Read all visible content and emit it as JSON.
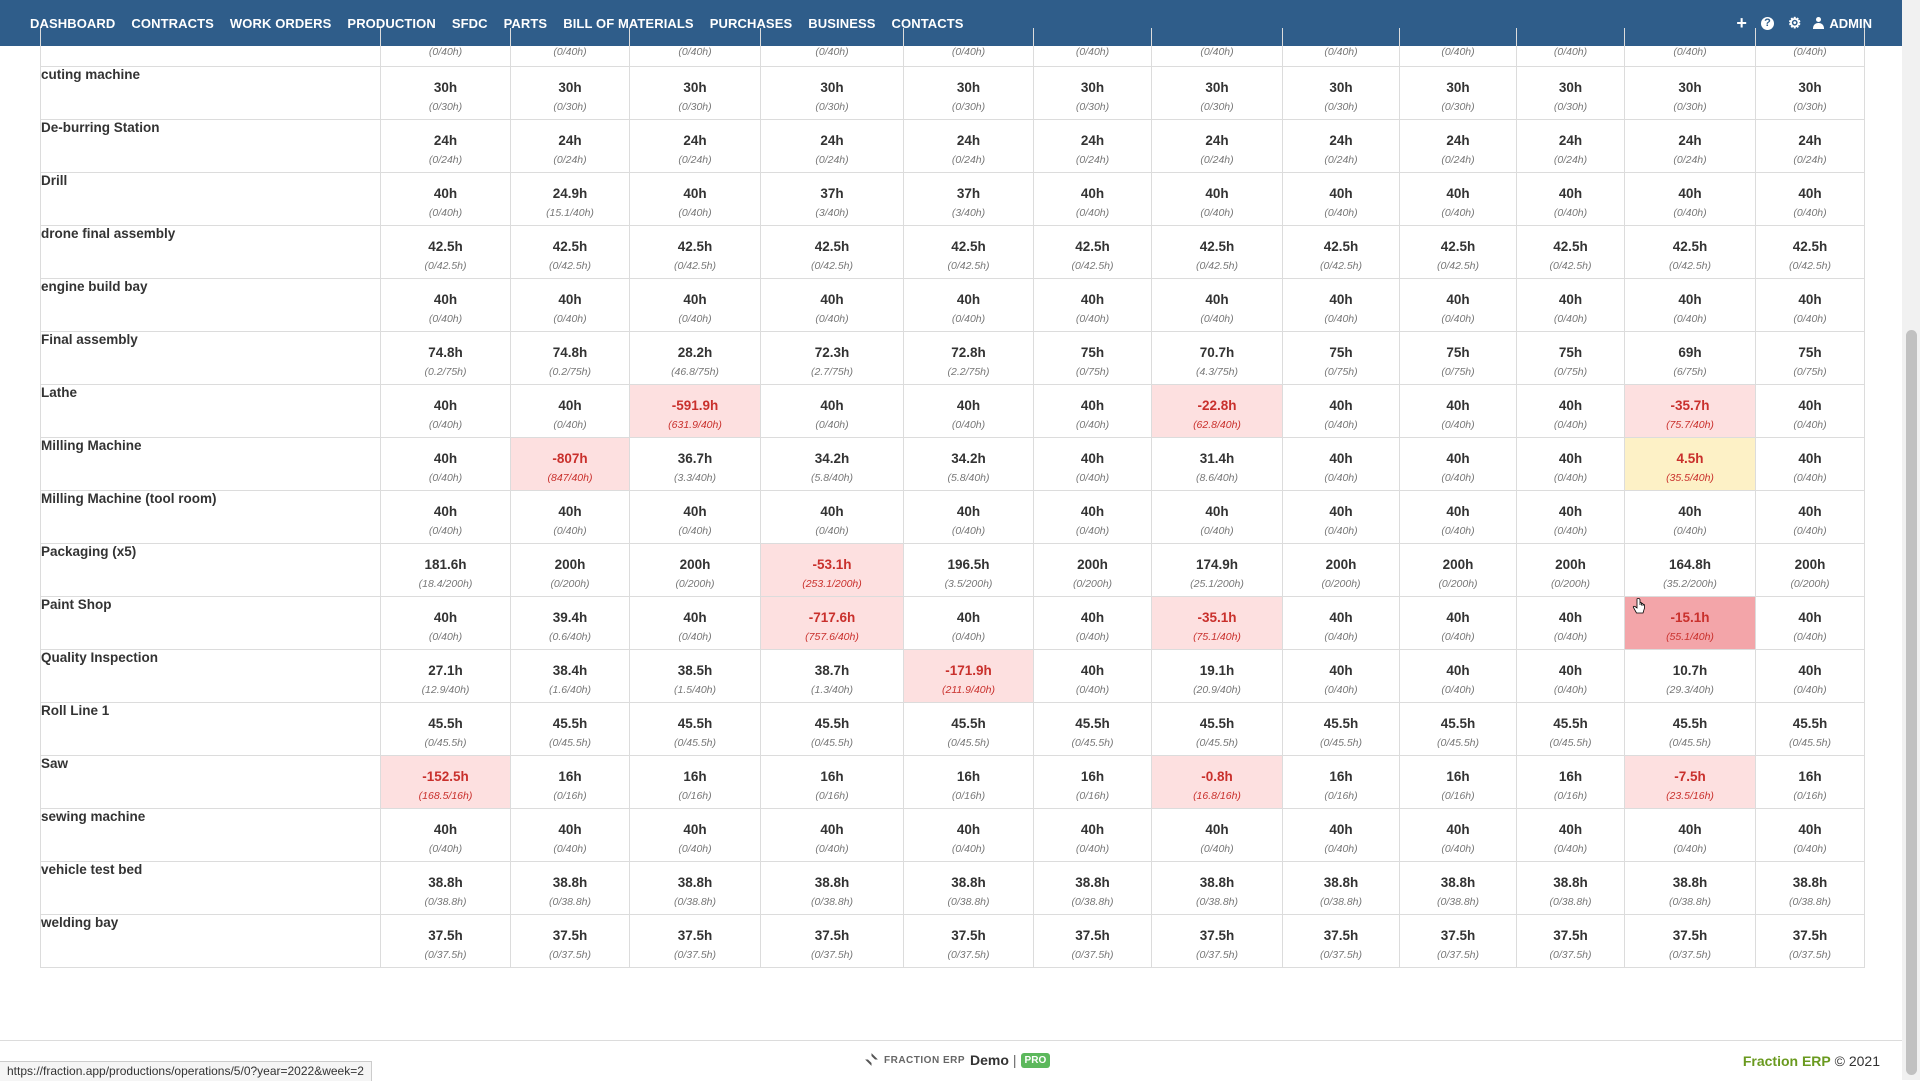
{
  "nav": {
    "items": [
      "DASHBOARD",
      "CONTRACTS",
      "WORK ORDERS",
      "PRODUCTION",
      "SFDC",
      "PARTS",
      "BILL OF MATERIALS",
      "PURCHASES",
      "BUSINESS",
      "CONTACTS"
    ],
    "admin_label": "ADMIN",
    "icons": [
      "plus-icon",
      "help-icon",
      "gear-icon",
      "user-icon"
    ]
  },
  "colors": {
    "navbar": "#2f5d8a",
    "negative_cell": "#fde0e0",
    "warning_cell": "#fdf1c6",
    "hover_cell": "#f3a5a9",
    "negative_text": "#c9302c",
    "brand_green": "#6a9a1f"
  },
  "partial_row": {
    "cells": [
      "(0/40h)",
      "(0/40h)",
      "(0/40h)",
      "(0/40h)",
      "(0/40h)",
      "(0/40h)",
      "(0/40h)",
      "(0/40h)",
      "(0/40h)",
      "(0/40h)",
      "(0/40h)",
      "(0/40h)"
    ]
  },
  "rows": [
    {
      "name": "cuting machine",
      "cells": [
        {
          "h": "30h",
          "s": "(0/30h)"
        },
        {
          "h": "30h",
          "s": "(0/30h)"
        },
        {
          "h": "30h",
          "s": "(0/30h)"
        },
        {
          "h": "30h",
          "s": "(0/30h)"
        },
        {
          "h": "30h",
          "s": "(0/30h)"
        },
        {
          "h": "30h",
          "s": "(0/30h)"
        },
        {
          "h": "30h",
          "s": "(0/30h)"
        },
        {
          "h": "30h",
          "s": "(0/30h)"
        },
        {
          "h": "30h",
          "s": "(0/30h)"
        },
        {
          "h": "30h",
          "s": "(0/30h)"
        },
        {
          "h": "30h",
          "s": "(0/30h)"
        },
        {
          "h": "30h",
          "s": "(0/30h)"
        }
      ]
    },
    {
      "name": "De-burring Station",
      "cells": [
        {
          "h": "24h",
          "s": "(0/24h)"
        },
        {
          "h": "24h",
          "s": "(0/24h)"
        },
        {
          "h": "24h",
          "s": "(0/24h)"
        },
        {
          "h": "24h",
          "s": "(0/24h)"
        },
        {
          "h": "24h",
          "s": "(0/24h)"
        },
        {
          "h": "24h",
          "s": "(0/24h)"
        },
        {
          "h": "24h",
          "s": "(0/24h)"
        },
        {
          "h": "24h",
          "s": "(0/24h)"
        },
        {
          "h": "24h",
          "s": "(0/24h)"
        },
        {
          "h": "24h",
          "s": "(0/24h)"
        },
        {
          "h": "24h",
          "s": "(0/24h)"
        },
        {
          "h": "24h",
          "s": "(0/24h)"
        }
      ]
    },
    {
      "name": "Drill",
      "cells": [
        {
          "h": "40h",
          "s": "(0/40h)"
        },
        {
          "h": "24.9h",
          "s": "(15.1/40h)"
        },
        {
          "h": "40h",
          "s": "(0/40h)"
        },
        {
          "h": "37h",
          "s": "(3/40h)"
        },
        {
          "h": "37h",
          "s": "(3/40h)"
        },
        {
          "h": "40h",
          "s": "(0/40h)"
        },
        {
          "h": "40h",
          "s": "(0/40h)"
        },
        {
          "h": "40h",
          "s": "(0/40h)"
        },
        {
          "h": "40h",
          "s": "(0/40h)"
        },
        {
          "h": "40h",
          "s": "(0/40h)"
        },
        {
          "h": "40h",
          "s": "(0/40h)"
        },
        {
          "h": "40h",
          "s": "(0/40h)"
        }
      ]
    },
    {
      "name": "drone final assembly",
      "cells": [
        {
          "h": "42.5h",
          "s": "(0/42.5h)"
        },
        {
          "h": "42.5h",
          "s": "(0/42.5h)"
        },
        {
          "h": "42.5h",
          "s": "(0/42.5h)"
        },
        {
          "h": "42.5h",
          "s": "(0/42.5h)"
        },
        {
          "h": "42.5h",
          "s": "(0/42.5h)"
        },
        {
          "h": "42.5h",
          "s": "(0/42.5h)"
        },
        {
          "h": "42.5h",
          "s": "(0/42.5h)"
        },
        {
          "h": "42.5h",
          "s": "(0/42.5h)"
        },
        {
          "h": "42.5h",
          "s": "(0/42.5h)"
        },
        {
          "h": "42.5h",
          "s": "(0/42.5h)"
        },
        {
          "h": "42.5h",
          "s": "(0/42.5h)"
        },
        {
          "h": "42.5h",
          "s": "(0/42.5h)"
        }
      ]
    },
    {
      "name": "engine build bay",
      "cells": [
        {
          "h": "40h",
          "s": "(0/40h)"
        },
        {
          "h": "40h",
          "s": "(0/40h)"
        },
        {
          "h": "40h",
          "s": "(0/40h)"
        },
        {
          "h": "40h",
          "s": "(0/40h)"
        },
        {
          "h": "40h",
          "s": "(0/40h)"
        },
        {
          "h": "40h",
          "s": "(0/40h)"
        },
        {
          "h": "40h",
          "s": "(0/40h)"
        },
        {
          "h": "40h",
          "s": "(0/40h)"
        },
        {
          "h": "40h",
          "s": "(0/40h)"
        },
        {
          "h": "40h",
          "s": "(0/40h)"
        },
        {
          "h": "40h",
          "s": "(0/40h)"
        },
        {
          "h": "40h",
          "s": "(0/40h)"
        }
      ]
    },
    {
      "name": "Final assembly",
      "cells": [
        {
          "h": "74.8h",
          "s": "(0.2/75h)"
        },
        {
          "h": "74.8h",
          "s": "(0.2/75h)"
        },
        {
          "h": "28.2h",
          "s": "(46.8/75h)"
        },
        {
          "h": "72.3h",
          "s": "(2.7/75h)"
        },
        {
          "h": "72.8h",
          "s": "(2.2/75h)"
        },
        {
          "h": "75h",
          "s": "(0/75h)"
        },
        {
          "h": "70.7h",
          "s": "(4.3/75h)"
        },
        {
          "h": "75h",
          "s": "(0/75h)"
        },
        {
          "h": "75h",
          "s": "(0/75h)"
        },
        {
          "h": "75h",
          "s": "(0/75h)"
        },
        {
          "h": "69h",
          "s": "(6/75h)"
        },
        {
          "h": "75h",
          "s": "(0/75h)"
        }
      ]
    },
    {
      "name": "Lathe",
      "cells": [
        {
          "h": "40h",
          "s": "(0/40h)"
        },
        {
          "h": "40h",
          "s": "(0/40h)"
        },
        {
          "h": "-591.9h",
          "s": "(631.9/40h)",
          "state": "neg"
        },
        {
          "h": "40h",
          "s": "(0/40h)"
        },
        {
          "h": "40h",
          "s": "(0/40h)"
        },
        {
          "h": "40h",
          "s": "(0/40h)"
        },
        {
          "h": "-22.8h",
          "s": "(62.8/40h)",
          "state": "neg"
        },
        {
          "h": "40h",
          "s": "(0/40h)"
        },
        {
          "h": "40h",
          "s": "(0/40h)"
        },
        {
          "h": "40h",
          "s": "(0/40h)"
        },
        {
          "h": "-35.7h",
          "s": "(75.7/40h)",
          "state": "neg"
        },
        {
          "h": "40h",
          "s": "(0/40h)"
        }
      ]
    },
    {
      "name": "Milling Machine",
      "cells": [
        {
          "h": "40h",
          "s": "(0/40h)"
        },
        {
          "h": "-807h",
          "s": "(847/40h)",
          "state": "neg"
        },
        {
          "h": "36.7h",
          "s": "(3.3/40h)"
        },
        {
          "h": "34.2h",
          "s": "(5.8/40h)"
        },
        {
          "h": "34.2h",
          "s": "(5.8/40h)"
        },
        {
          "h": "40h",
          "s": "(0/40h)"
        },
        {
          "h": "31.4h",
          "s": "(8.6/40h)"
        },
        {
          "h": "40h",
          "s": "(0/40h)"
        },
        {
          "h": "40h",
          "s": "(0/40h)"
        },
        {
          "h": "40h",
          "s": "(0/40h)"
        },
        {
          "h": "4.5h",
          "s": "(35.5/40h)",
          "state": "warn"
        },
        {
          "h": "40h",
          "s": "(0/40h)"
        }
      ]
    },
    {
      "name": "Milling Machine (tool room)",
      "cells": [
        {
          "h": "40h",
          "s": "(0/40h)"
        },
        {
          "h": "40h",
          "s": "(0/40h)"
        },
        {
          "h": "40h",
          "s": "(0/40h)"
        },
        {
          "h": "40h",
          "s": "(0/40h)"
        },
        {
          "h": "40h",
          "s": "(0/40h)"
        },
        {
          "h": "40h",
          "s": "(0/40h)"
        },
        {
          "h": "40h",
          "s": "(0/40h)"
        },
        {
          "h": "40h",
          "s": "(0/40h)"
        },
        {
          "h": "40h",
          "s": "(0/40h)"
        },
        {
          "h": "40h",
          "s": "(0/40h)"
        },
        {
          "h": "40h",
          "s": "(0/40h)"
        },
        {
          "h": "40h",
          "s": "(0/40h)"
        }
      ]
    },
    {
      "name": "Packaging (x5)",
      "cells": [
        {
          "h": "181.6h",
          "s": "(18.4/200h)"
        },
        {
          "h": "200h",
          "s": "(0/200h)"
        },
        {
          "h": "200h",
          "s": "(0/200h)"
        },
        {
          "h": "-53.1h",
          "s": "(253.1/200h)",
          "state": "neg"
        },
        {
          "h": "196.5h",
          "s": "(3.5/200h)"
        },
        {
          "h": "200h",
          "s": "(0/200h)"
        },
        {
          "h": "174.9h",
          "s": "(25.1/200h)"
        },
        {
          "h": "200h",
          "s": "(0/200h)"
        },
        {
          "h": "200h",
          "s": "(0/200h)"
        },
        {
          "h": "200h",
          "s": "(0/200h)"
        },
        {
          "h": "164.8h",
          "s": "(35.2/200h)"
        },
        {
          "h": "200h",
          "s": "(0/200h)"
        }
      ]
    },
    {
      "name": "Paint Shop",
      "cells": [
        {
          "h": "40h",
          "s": "(0/40h)"
        },
        {
          "h": "39.4h",
          "s": "(0.6/40h)"
        },
        {
          "h": "40h",
          "s": "(0/40h)"
        },
        {
          "h": "-717.6h",
          "s": "(757.6/40h)",
          "state": "neg"
        },
        {
          "h": "40h",
          "s": "(0/40h)"
        },
        {
          "h": "40h",
          "s": "(0/40h)"
        },
        {
          "h": "-35.1h",
          "s": "(75.1/40h)",
          "state": "neg"
        },
        {
          "h": "40h",
          "s": "(0/40h)"
        },
        {
          "h": "40h",
          "s": "(0/40h)"
        },
        {
          "h": "40h",
          "s": "(0/40h)"
        },
        {
          "h": "-15.1h",
          "s": "(55.1/40h)",
          "state": "hl"
        },
        {
          "h": "40h",
          "s": "(0/40h)"
        }
      ]
    },
    {
      "name": "Quality Inspection",
      "cells": [
        {
          "h": "27.1h",
          "s": "(12.9/40h)"
        },
        {
          "h": "38.4h",
          "s": "(1.6/40h)"
        },
        {
          "h": "38.5h",
          "s": "(1.5/40h)"
        },
        {
          "h": "38.7h",
          "s": "(1.3/40h)"
        },
        {
          "h": "-171.9h",
          "s": "(211.9/40h)",
          "state": "neg"
        },
        {
          "h": "40h",
          "s": "(0/40h)"
        },
        {
          "h": "19.1h",
          "s": "(20.9/40h)"
        },
        {
          "h": "40h",
          "s": "(0/40h)"
        },
        {
          "h": "40h",
          "s": "(0/40h)"
        },
        {
          "h": "40h",
          "s": "(0/40h)"
        },
        {
          "h": "10.7h",
          "s": "(29.3/40h)"
        },
        {
          "h": "40h",
          "s": "(0/40h)"
        }
      ]
    },
    {
      "name": "Roll Line 1",
      "cells": [
        {
          "h": "45.5h",
          "s": "(0/45.5h)"
        },
        {
          "h": "45.5h",
          "s": "(0/45.5h)"
        },
        {
          "h": "45.5h",
          "s": "(0/45.5h)"
        },
        {
          "h": "45.5h",
          "s": "(0/45.5h)"
        },
        {
          "h": "45.5h",
          "s": "(0/45.5h)"
        },
        {
          "h": "45.5h",
          "s": "(0/45.5h)"
        },
        {
          "h": "45.5h",
          "s": "(0/45.5h)"
        },
        {
          "h": "45.5h",
          "s": "(0/45.5h)"
        },
        {
          "h": "45.5h",
          "s": "(0/45.5h)"
        },
        {
          "h": "45.5h",
          "s": "(0/45.5h)"
        },
        {
          "h": "45.5h",
          "s": "(0/45.5h)"
        },
        {
          "h": "45.5h",
          "s": "(0/45.5h)"
        }
      ]
    },
    {
      "name": "Saw",
      "cells": [
        {
          "h": "-152.5h",
          "s": "(168.5/16h)",
          "state": "neg"
        },
        {
          "h": "16h",
          "s": "(0/16h)"
        },
        {
          "h": "16h",
          "s": "(0/16h)"
        },
        {
          "h": "16h",
          "s": "(0/16h)"
        },
        {
          "h": "16h",
          "s": "(0/16h)"
        },
        {
          "h": "16h",
          "s": "(0/16h)"
        },
        {
          "h": "-0.8h",
          "s": "(16.8/16h)",
          "state": "neg"
        },
        {
          "h": "16h",
          "s": "(0/16h)"
        },
        {
          "h": "16h",
          "s": "(0/16h)"
        },
        {
          "h": "16h",
          "s": "(0/16h)"
        },
        {
          "h": "-7.5h",
          "s": "(23.5/16h)",
          "state": "neg"
        },
        {
          "h": "16h",
          "s": "(0/16h)"
        }
      ]
    },
    {
      "name": "sewing machine",
      "cells": [
        {
          "h": "40h",
          "s": "(0/40h)"
        },
        {
          "h": "40h",
          "s": "(0/40h)"
        },
        {
          "h": "40h",
          "s": "(0/40h)"
        },
        {
          "h": "40h",
          "s": "(0/40h)"
        },
        {
          "h": "40h",
          "s": "(0/40h)"
        },
        {
          "h": "40h",
          "s": "(0/40h)"
        },
        {
          "h": "40h",
          "s": "(0/40h)"
        },
        {
          "h": "40h",
          "s": "(0/40h)"
        },
        {
          "h": "40h",
          "s": "(0/40h)"
        },
        {
          "h": "40h",
          "s": "(0/40h)"
        },
        {
          "h": "40h",
          "s": "(0/40h)"
        },
        {
          "h": "40h",
          "s": "(0/40h)"
        }
      ]
    },
    {
      "name": "vehicle test bed",
      "cells": [
        {
          "h": "38.8h",
          "s": "(0/38.8h)"
        },
        {
          "h": "38.8h",
          "s": "(0/38.8h)"
        },
        {
          "h": "38.8h",
          "s": "(0/38.8h)"
        },
        {
          "h": "38.8h",
          "s": "(0/38.8h)"
        },
        {
          "h": "38.8h",
          "s": "(0/38.8h)"
        },
        {
          "h": "38.8h",
          "s": "(0/38.8h)"
        },
        {
          "h": "38.8h",
          "s": "(0/38.8h)"
        },
        {
          "h": "38.8h",
          "s": "(0/38.8h)"
        },
        {
          "h": "38.8h",
          "s": "(0/38.8h)"
        },
        {
          "h": "38.8h",
          "s": "(0/38.8h)"
        },
        {
          "h": "38.8h",
          "s": "(0/38.8h)"
        },
        {
          "h": "38.8h",
          "s": "(0/38.8h)"
        }
      ]
    },
    {
      "name": "welding bay",
      "cells": [
        {
          "h": "37.5h",
          "s": "(0/37.5h)"
        },
        {
          "h": "37.5h",
          "s": "(0/37.5h)"
        },
        {
          "h": "37.5h",
          "s": "(0/37.5h)"
        },
        {
          "h": "37.5h",
          "s": "(0/37.5h)"
        },
        {
          "h": "37.5h",
          "s": "(0/37.5h)"
        },
        {
          "h": "37.5h",
          "s": "(0/37.5h)"
        },
        {
          "h": "37.5h",
          "s": "(0/37.5h)"
        },
        {
          "h": "37.5h",
          "s": "(0/37.5h)"
        },
        {
          "h": "37.5h",
          "s": "(0/37.5h)"
        },
        {
          "h": "37.5h",
          "s": "(0/37.5h)"
        },
        {
          "h": "37.5h",
          "s": "(0/37.5h)"
        },
        {
          "h": "37.5h",
          "s": "(0/37.5h)"
        }
      ]
    }
  ],
  "footer": {
    "logo_text": "FRACTION ERP",
    "demo_label": "Demo",
    "separator": "|",
    "pro_badge": "PRO",
    "brand": "Fraction ERP",
    "copyright": "© 2021"
  },
  "status_bar": {
    "url": "https://fraction.app/productions/operations/5/0?year=2022&week=2"
  }
}
